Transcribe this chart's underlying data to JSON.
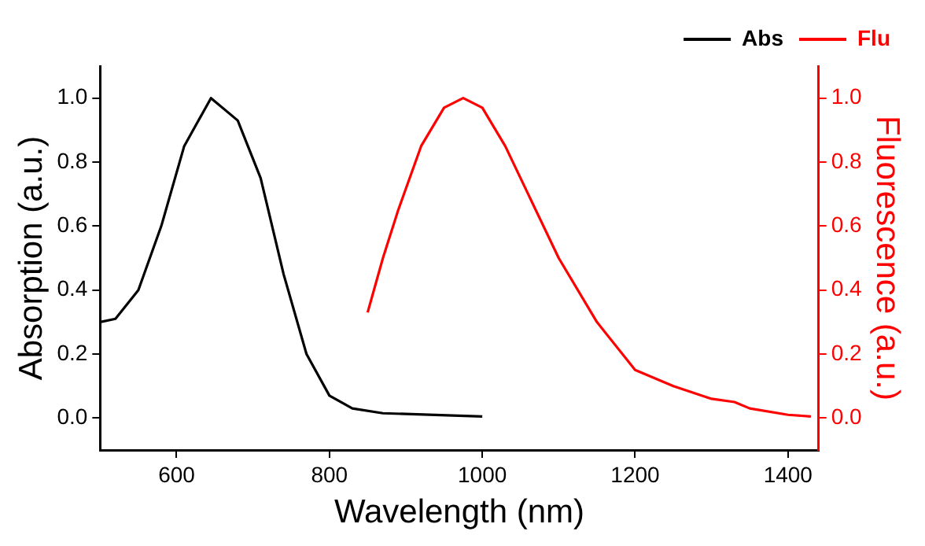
{
  "chart_data": {
    "type": "line",
    "xlabel": "Wavelength (nm)",
    "ylabel": "Absorption (a.u.)",
    "y2label": "Fluorescence (a.u.)",
    "xlim": [
      500,
      1440
    ],
    "xticks": [
      600,
      800,
      1000,
      1200,
      1400
    ],
    "ylim": [
      -0.1,
      1.1
    ],
    "yticks": [
      {
        "value": 0,
        "label": "0.0"
      },
      0.2,
      0.4,
      0.6,
      0.8,
      {
        "value": 1,
        "label": "1.0"
      }
    ],
    "y2lim": [
      -0.1,
      1.1
    ],
    "y2ticks": [
      {
        "value": 0,
        "label": "0.0"
      },
      0.2,
      0.4,
      0.6,
      0.8,
      {
        "value": 1,
        "label": "1.0"
      }
    ],
    "grid": false,
    "legend": "top right",
    "marker": "none",
    "line_style": "solid",
    "series": [
      {
        "name": "Abs",
        "color": "#000000",
        "x": [
          500,
          520,
          550,
          580,
          610,
          645,
          680,
          710,
          740,
          770,
          800,
          830,
          870,
          1000
        ],
        "values": [
          0.3,
          0.31,
          0.4,
          0.6,
          0.85,
          1.0,
          0.93,
          0.75,
          0.45,
          0.2,
          0.07,
          0.03,
          0.015,
          0.005
        ]
      },
      {
        "name": "Flu",
        "color": "#ff0000",
        "axis": "y2",
        "x": [
          850,
          870,
          890,
          920,
          950,
          975,
          1000,
          1030,
          1060,
          1100,
          1150,
          1200,
          1250,
          1300,
          1330,
          1350,
          1400,
          1430
        ],
        "values": [
          0.33,
          0.5,
          0.65,
          0.85,
          0.97,
          1.0,
          0.97,
          0.85,
          0.7,
          0.5,
          0.3,
          0.15,
          0.1,
          0.06,
          0.05,
          0.03,
          0.01,
          0.005
        ]
      }
    ]
  }
}
